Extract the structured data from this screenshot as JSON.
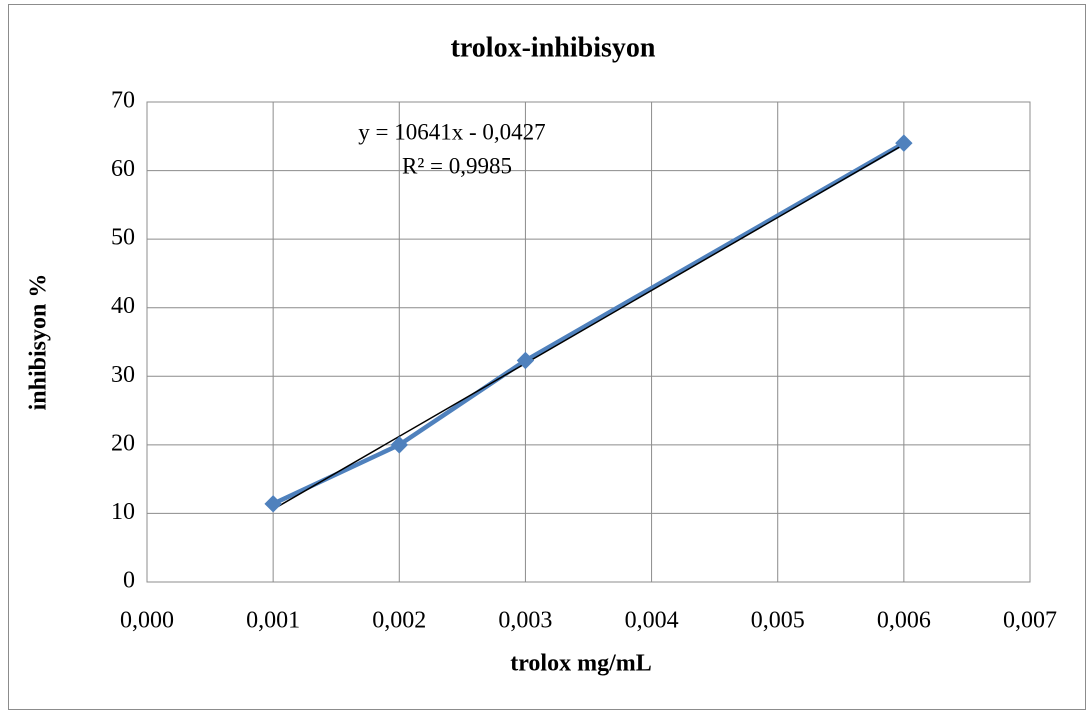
{
  "chart_data": {
    "type": "line",
    "title": "trolox-inhibisyon",
    "x_label": "trolox mg/mL",
    "y_label": "inhibisyon %",
    "x": [
      0.001,
      0.002,
      0.003,
      0.006
    ],
    "values": [
      11.4,
      20.0,
      32.3,
      64.0
    ],
    "color": "#4f81bd",
    "marker": "diamond",
    "trendline": {
      "x": [
        0.001,
        0.006
      ],
      "values": [
        10.6,
        63.8
      ],
      "color": "#000000"
    },
    "equation": "y = 10641x - 0,0427",
    "r_squared": "R² = 0,9985",
    "xlim": [
      0,
      0.007
    ],
    "xticks": [
      {
        "value": 0,
        "label": "0,000"
      },
      {
        "value": 0.001,
        "label": "0,001"
      },
      {
        "value": 0.002,
        "label": "0,002"
      },
      {
        "value": 0.003,
        "label": "0,003"
      },
      {
        "value": 0.004,
        "label": "0,004"
      },
      {
        "value": 0.005,
        "label": "0,005"
      },
      {
        "value": 0.006,
        "label": "0,006"
      },
      {
        "value": 0.007,
        "label": "0,007"
      }
    ],
    "ylim": [
      0,
      70
    ],
    "yticks": [
      0,
      10,
      20,
      30,
      40,
      50,
      60,
      70
    ],
    "grid": true
  }
}
